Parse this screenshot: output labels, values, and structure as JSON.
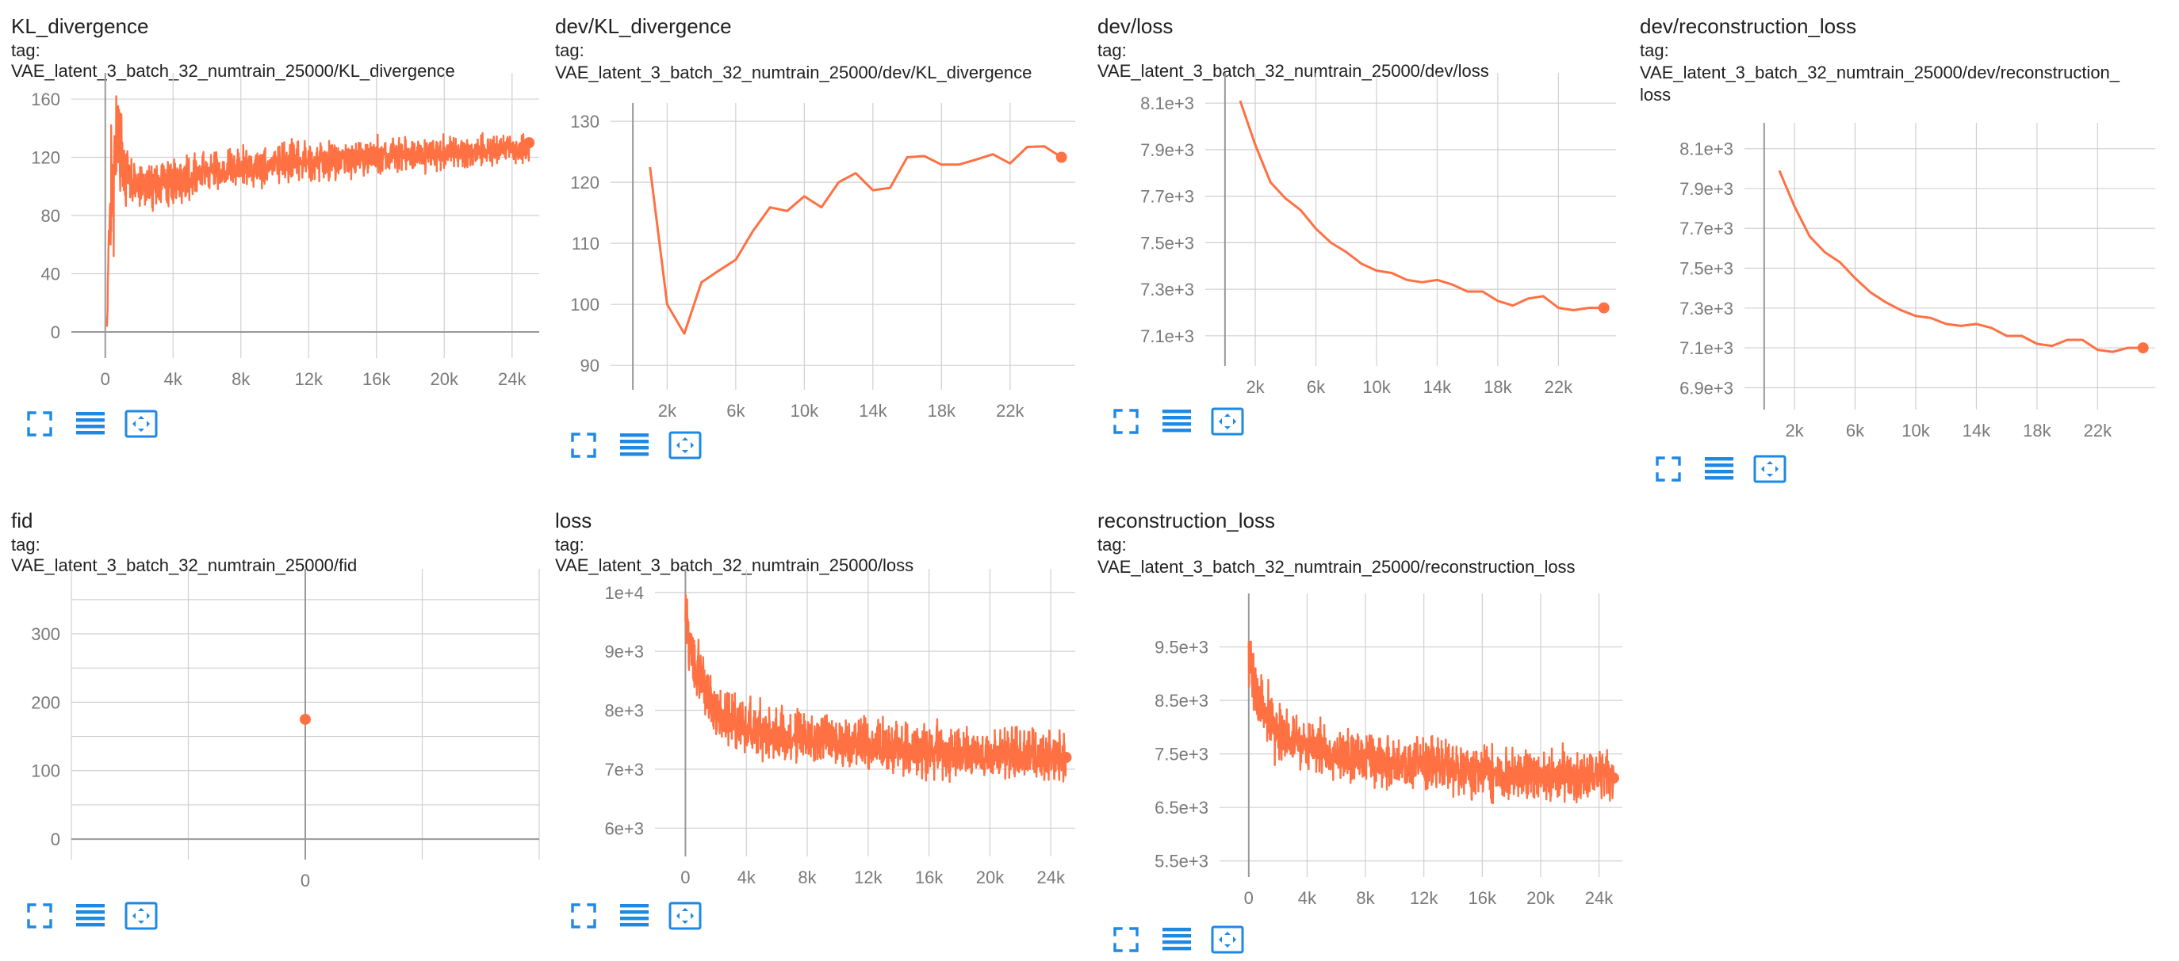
{
  "theme": {
    "line_color": "#ff7043",
    "icon_color": "#1e88e5"
  },
  "controls": [
    "fit-domain-icon",
    "toggle-log-scale-icon",
    "reset-zoom-icon"
  ],
  "chart_data": [
    {
      "id": "kl",
      "type": "line",
      "title": "KL_divergence",
      "tag_lines": [
        "tag: VAE_latent_3_batch_32_numtrain_25000/KL_divergence"
      ],
      "xlim": [
        -2000,
        25600
      ],
      "ylim": [
        -18,
        178
      ],
      "x_ticks": [
        0,
        4000,
        8000,
        12000,
        16000,
        20000,
        24000
      ],
      "x_tick_labels": [
        "0",
        "4k",
        "8k",
        "12k",
        "16k",
        "20k",
        "24k"
      ],
      "y_ticks": [
        0,
        40,
        80,
        120,
        160
      ],
      "y_tick_labels": [
        "0",
        "40",
        "80",
        "120",
        "160"
      ],
      "noisy": true,
      "trend": [
        [
          100,
          3
        ],
        [
          200,
          70
        ],
        [
          400,
          95
        ],
        [
          700,
          140
        ],
        [
          1200,
          105
        ],
        [
          2000,
          100
        ],
        [
          4000,
          103
        ],
        [
          6000,
          110
        ],
        [
          8000,
          113
        ],
        [
          12000,
          117
        ],
        [
          16000,
          121
        ],
        [
          20000,
          123
        ],
        [
          25000,
          126
        ]
      ],
      "spikes": [
        [
          650,
          162
        ],
        [
          900,
          150
        ],
        [
          350,
          142
        ],
        [
          500,
          52
        ]
      ],
      "noise_amp": [
        [
          200,
          40
        ],
        [
          2000,
          22
        ],
        [
          25000,
          14
        ]
      ],
      "last": [
        25000,
        130
      ]
    },
    {
      "id": "devkl",
      "type": "line",
      "title": "dev/KL_divergence",
      "tag_lines": [
        "tag:",
        "VAE_latent_3_batch_32_numtrain_25000/dev/KL_divergence"
      ],
      "xlim": [
        -1300,
        25800
      ],
      "ylim": [
        86,
        133
      ],
      "x_ticks": [
        2000,
        6000,
        10000,
        14000,
        18000,
        22000
      ],
      "x_tick_labels": [
        "2k",
        "6k",
        "10k",
        "14k",
        "18k",
        "22k"
      ],
      "y_ticks": [
        90,
        100,
        110,
        120,
        130
      ],
      "y_tick_labels": [
        "90",
        "100",
        "110",
        "120",
        "130"
      ],
      "x": [
        1000,
        2000,
        3000,
        4000,
        5000,
        6000,
        7000,
        8000,
        9000,
        10000,
        11000,
        12000,
        13000,
        14000,
        15000,
        16000,
        17000,
        18000,
        19000,
        20000,
        21000,
        22000,
        23000,
        24000,
        25000
      ],
      "y": [
        122.5,
        100,
        95.2,
        103.6,
        105.5,
        107.3,
        112,
        115.9,
        115.3,
        117.7,
        115.9,
        120,
        121.5,
        118.7,
        119.1,
        124.1,
        124.3,
        122.9,
        122.9,
        123.7,
        124.6,
        123.1,
        125.8,
        125.9,
        124.1
      ]
    },
    {
      "id": "devloss",
      "type": "line",
      "title": "dev/loss",
      "tag_lines": [
        "tag: VAE_latent_3_batch_32_numtrain_25000/dev/loss"
      ],
      "xlim": [
        -1300,
        25800
      ],
      "ylim": [
        6970,
        8230
      ],
      "x_ticks": [
        2000,
        6000,
        10000,
        14000,
        18000,
        22000
      ],
      "x_tick_labels": [
        "2k",
        "6k",
        "10k",
        "14k",
        "18k",
        "22k"
      ],
      "y_ticks": [
        7100,
        7300,
        7500,
        7700,
        7900,
        8100
      ],
      "y_tick_labels": [
        "7.1e+3",
        "7.3e+3",
        "7.5e+3",
        "7.7e+3",
        "7.9e+3",
        "8.1e+3"
      ],
      "x": [
        1000,
        2000,
        3000,
        4000,
        5000,
        6000,
        7000,
        8000,
        9000,
        10000,
        11000,
        12000,
        13000,
        14000,
        15000,
        16000,
        17000,
        18000,
        19000,
        20000,
        21000,
        22000,
        23000,
        24000,
        25000
      ],
      "y": [
        8110,
        7920,
        7760,
        7690,
        7640,
        7560,
        7500,
        7460,
        7410,
        7380,
        7370,
        7340,
        7330,
        7340,
        7320,
        7290,
        7290,
        7250,
        7230,
        7260,
        7270,
        7220,
        7210,
        7220,
        7220
      ]
    },
    {
      "id": "devrec",
      "type": "line",
      "title": "dev/reconstruction_loss",
      "tag_lines": [
        "tag:",
        "VAE_latent_3_batch_32_numtrain_25000/dev/reconstruction_",
        "loss"
      ],
      "xlim": [
        -1300,
        25800
      ],
      "ylim": [
        6790,
        8230
      ],
      "x_ticks": [
        2000,
        6000,
        10000,
        14000,
        18000,
        22000
      ],
      "x_tick_labels": [
        "2k",
        "6k",
        "10k",
        "14k",
        "18k",
        "22k"
      ],
      "y_ticks": [
        6900,
        7100,
        7300,
        7500,
        7700,
        7900,
        8100
      ],
      "y_tick_labels": [
        "6.9e+3",
        "7.1e+3",
        "7.3e+3",
        "7.5e+3",
        "7.7e+3",
        "7.9e+3",
        "8.1e+3"
      ],
      "x": [
        1000,
        2000,
        3000,
        4000,
        5000,
        6000,
        7000,
        8000,
        9000,
        10000,
        11000,
        12000,
        13000,
        14000,
        15000,
        16000,
        17000,
        18000,
        19000,
        20000,
        21000,
        22000,
        23000,
        24000,
        25000
      ],
      "y": [
        7990,
        7810,
        7660,
        7580,
        7530,
        7450,
        7380,
        7330,
        7290,
        7260,
        7250,
        7220,
        7210,
        7220,
        7200,
        7160,
        7160,
        7120,
        7110,
        7140,
        7140,
        7090,
        7080,
        7100,
        7100
      ]
    },
    {
      "id": "fid",
      "type": "scatter",
      "title": "fid",
      "tag_lines": [
        "tag: VAE_latent_3_batch_32_numtrain_25000/fid"
      ],
      "xlim": [
        -1,
        1
      ],
      "ylim": [
        -30,
        395
      ],
      "x_ticks": [
        0
      ],
      "x_tick_labels": [
        "0"
      ],
      "y_ticks": [
        0,
        100,
        200,
        300
      ],
      "y_tick_labels": [
        "0",
        "100",
        "200",
        "300"
      ],
      "extra_h_grid": [
        50,
        150,
        250,
        350
      ],
      "extra_v_grid": [
        -1,
        -0.5,
        0.5,
        1
      ],
      "x": [
        0
      ],
      "y": [
        175
      ]
    },
    {
      "id": "loss",
      "type": "line",
      "title": "loss",
      "tag_lines": [
        "tag: VAE_latent_3_batch_32_numtrain_25000/loss"
      ],
      "xlim": [
        -2000,
        25600
      ],
      "ylim": [
        5520,
        10400
      ],
      "x_ticks": [
        0,
        4000,
        8000,
        12000,
        16000,
        20000,
        24000
      ],
      "x_tick_labels": [
        "0",
        "4k",
        "8k",
        "12k",
        "16k",
        "20k",
        "24k"
      ],
      "y_ticks": [
        6000,
        7000,
        8000,
        9000,
        10000
      ],
      "y_tick_labels": [
        "6e+3",
        "7e+3",
        "8e+3",
        "9e+3",
        "1e+4"
      ],
      "noisy": true,
      "trend": [
        [
          0,
          9600
        ],
        [
          300,
          9000
        ],
        [
          1000,
          8500
        ],
        [
          2000,
          8000
        ],
        [
          4000,
          7700
        ],
        [
          8000,
          7500
        ],
        [
          12000,
          7400
        ],
        [
          16000,
          7300
        ],
        [
          20000,
          7250
        ],
        [
          25000,
          7200
        ]
      ],
      "spikes": [
        [
          150,
          9550
        ],
        [
          600,
          9100
        ]
      ],
      "noise_amp": [
        [
          0,
          700
        ],
        [
          3000,
          650
        ],
        [
          25000,
          600
        ]
      ],
      "last": [
        25000,
        7200
      ]
    },
    {
      "id": "rec",
      "type": "line",
      "title": "reconstruction_loss",
      "tag_lines": [
        "tag:",
        "VAE_latent_3_batch_32_numtrain_25000/reconstruction_loss"
      ],
      "xlim": [
        -2000,
        25600
      ],
      "ylim": [
        5200,
        10500
      ],
      "x_ticks": [
        0,
        4000,
        8000,
        12000,
        16000,
        20000,
        24000
      ],
      "x_tick_labels": [
        "0",
        "4k",
        "8k",
        "12k",
        "16k",
        "20k",
        "24k"
      ],
      "y_ticks": [
        5500,
        6500,
        7500,
        8500,
        9500
      ],
      "y_tick_labels": [
        "5.5e+3",
        "6.5e+3",
        "7.5e+3",
        "8.5e+3",
        "9.5e+3"
      ],
      "noisy": true,
      "trend": [
        [
          0,
          9400
        ],
        [
          300,
          8800
        ],
        [
          1000,
          8300
        ],
        [
          2000,
          7900
        ],
        [
          4000,
          7600
        ],
        [
          8000,
          7400
        ],
        [
          12000,
          7300
        ],
        [
          16000,
          7150
        ],
        [
          20000,
          7100
        ],
        [
          25000,
          7050
        ]
      ],
      "spikes": [
        [
          150,
          9600
        ],
        [
          600,
          8900
        ]
      ],
      "noise_amp": [
        [
          0,
          800
        ],
        [
          3000,
          700
        ],
        [
          25000,
          650
        ]
      ],
      "last": [
        25000,
        7050
      ]
    }
  ]
}
